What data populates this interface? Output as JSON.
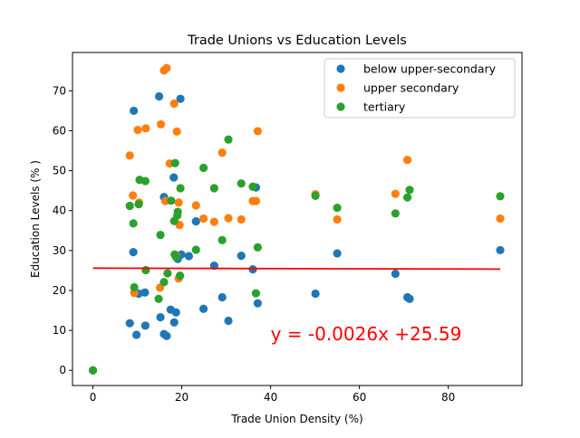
{
  "chart_data": {
    "type": "scatter",
    "title": "Trade Unions vs Education Levels",
    "xlabel": "Trade Union Density (%)",
    "ylabel": "Education Levels (% )",
    "xlim": [
      -4.6,
      96.6
    ],
    "ylim": [
      -3.8,
      79.6
    ],
    "xticks": [
      0,
      20,
      40,
      60,
      80
    ],
    "yticks": [
      0,
      10,
      20,
      30,
      40,
      50,
      60,
      70
    ],
    "grid": false,
    "legend": {
      "position": "upper right"
    },
    "series": [
      {
        "name": "below upper-secondary",
        "color": "#1f77b4",
        "points": [
          [
            0,
            0
          ],
          [
            8.3,
            11.8
          ],
          [
            9.1,
            29.6
          ],
          [
            9.2,
            65
          ],
          [
            9.8,
            8.9
          ],
          [
            10.3,
            19.2
          ],
          [
            11.7,
            19.5
          ],
          [
            11.8,
            11.2
          ],
          [
            14.9,
            68.6
          ],
          [
            15.2,
            13.3
          ],
          [
            16.0,
            43.4
          ],
          [
            16.0,
            9.1
          ],
          [
            16.6,
            8.6
          ],
          [
            17.5,
            15.2
          ],
          [
            18.2,
            48.3
          ],
          [
            18.3,
            12.0
          ],
          [
            18.7,
            14.5
          ],
          [
            19.1,
            27.9
          ],
          [
            19.7,
            68.0
          ],
          [
            19.9,
            29.0
          ],
          [
            21.6,
            28.6
          ],
          [
            23.2,
            37.3
          ],
          [
            24.9,
            15.4
          ],
          [
            27.3,
            26.2
          ],
          [
            29.1,
            18.3
          ],
          [
            30.5,
            12.4
          ],
          [
            33.4,
            28.7
          ],
          [
            36.0,
            25.3
          ],
          [
            36.7,
            45.8
          ],
          [
            37.1,
            16.8
          ],
          [
            50.1,
            19.2
          ],
          [
            55.0,
            29.3
          ],
          [
            68.1,
            24.2
          ],
          [
            70.8,
            18.3
          ],
          [
            71.3,
            17.9
          ],
          [
            91.7,
            30.1
          ]
        ]
      },
      {
        "name": "upper secondary",
        "color": "#ff7f0e",
        "points": [
          [
            0,
            0
          ],
          [
            8.3,
            53.8
          ],
          [
            9.0,
            43.8
          ],
          [
            9.3,
            19.4
          ],
          [
            10.1,
            60.2
          ],
          [
            10.4,
            42.0
          ],
          [
            11.9,
            60.6
          ],
          [
            15.1,
            20.7
          ],
          [
            15.3,
            61.6
          ],
          [
            16.0,
            75.1
          ],
          [
            16.6,
            75.7
          ],
          [
            16.3,
            42.4
          ],
          [
            17.3,
            51.8
          ],
          [
            18.3,
            66.8
          ],
          [
            18.7,
            28.8
          ],
          [
            18.9,
            59.8
          ],
          [
            19.3,
            42.0
          ],
          [
            19.5,
            36.4
          ],
          [
            19.3,
            23.0
          ],
          [
            23.2,
            41.3
          ],
          [
            24.9,
            38.0
          ],
          [
            27.3,
            37.2
          ],
          [
            29.1,
            54.5
          ],
          [
            30.5,
            38.1
          ],
          [
            33.4,
            37.8
          ],
          [
            36.0,
            42.4
          ],
          [
            36.7,
            42.4
          ],
          [
            37.1,
            59.9
          ],
          [
            50.1,
            44.1
          ],
          [
            55.0,
            37.8
          ],
          [
            68.1,
            44.2
          ],
          [
            70.8,
            52.7
          ],
          [
            91.7,
            38.0
          ]
        ]
      },
      {
        "name": "tertiary",
        "color": "#2ca02c",
        "points": [
          [
            0,
            0
          ],
          [
            8.3,
            41.2
          ],
          [
            9.1,
            36.8
          ],
          [
            9.3,
            20.8
          ],
          [
            10.3,
            41.6
          ],
          [
            10.5,
            47.7
          ],
          [
            11.8,
            47.4
          ],
          [
            11.9,
            25.1
          ],
          [
            14.8,
            17.9
          ],
          [
            15.2,
            33.9
          ],
          [
            16.0,
            22.1
          ],
          [
            16.8,
            24.3
          ],
          [
            17.6,
            42.5
          ],
          [
            18.3,
            37.4
          ],
          [
            18.4,
            29.0
          ],
          [
            18.5,
            51.9
          ],
          [
            18.7,
            28.4
          ],
          [
            19.0,
            38.8
          ],
          [
            19.1,
            39.7
          ],
          [
            19.7,
            45.6
          ],
          [
            19.6,
            23.7
          ],
          [
            23.2,
            30.2
          ],
          [
            24.9,
            50.7
          ],
          [
            27.3,
            45.6
          ],
          [
            29.1,
            32.6
          ],
          [
            30.5,
            57.8
          ],
          [
            33.4,
            46.8
          ],
          [
            36.0,
            46.0
          ],
          [
            36.7,
            19.3
          ],
          [
            37.1,
            30.8
          ],
          [
            50.1,
            43.7
          ],
          [
            55.0,
            40.7
          ],
          [
            68.1,
            39.3
          ],
          [
            70.8,
            43.3
          ],
          [
            71.3,
            45.2
          ],
          [
            91.7,
            43.6
          ]
        ]
      }
    ],
    "regression": {
      "color": "#ff0000",
      "slope": -0.0026,
      "intercept": 25.59,
      "x_range": [
        0,
        91.7
      ],
      "label": "y = -0.0026x +25.59",
      "label_anchor": [
        40,
        7.5
      ]
    }
  }
}
